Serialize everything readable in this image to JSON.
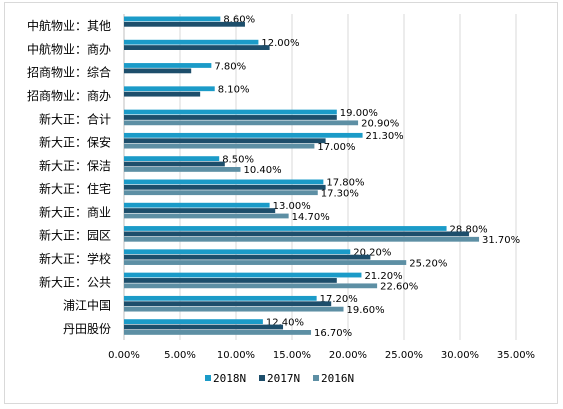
{
  "chart_data": {
    "type": "bar",
    "orientation": "horizontal",
    "categories": [
      "中航物业：其他",
      "中航物业：商办",
      "招商物业：综合",
      "招商物业：商办",
      "新大正：合计",
      "新大正：保安",
      "新大正：保洁",
      "新大正：住宅",
      "新大正：商业",
      "新大正：园区",
      "新大正：学校",
      "新大正：公共",
      "浦江中国",
      "丹田股份"
    ],
    "series": [
      {
        "name": "2018N",
        "color": "#1b9bc8",
        "values": [
          8.6,
          12.0,
          7.8,
          8.1,
          19.0,
          21.3,
          8.5,
          17.8,
          13.0,
          28.8,
          20.2,
          21.2,
          17.2,
          12.4
        ]
      },
      {
        "name": "2017N",
        "color": "#1d4e6b",
        "values": [
          10.8,
          13.0,
          6.0,
          6.8,
          19.0,
          18.0,
          9.0,
          18.0,
          13.5,
          30.8,
          22.0,
          19.0,
          18.5,
          14.2
        ]
      },
      {
        "name": "2016N",
        "color": "#5d8fa4",
        "values": [
          null,
          null,
          null,
          null,
          20.9,
          17.0,
          10.4,
          17.3,
          14.7,
          31.7,
          25.2,
          22.6,
          19.6,
          16.7
        ]
      }
    ],
    "data_labels": [
      [
        "8.60%",
        null,
        null
      ],
      [
        "12.00%",
        null,
        null
      ],
      [
        "7.80%",
        null,
        null
      ],
      [
        "8.10%",
        null,
        null
      ],
      [
        "19.00%",
        null,
        "20.90%"
      ],
      [
        "21.30%",
        null,
        "17.00%"
      ],
      [
        "8.50%",
        null,
        "10.40%"
      ],
      [
        "17.80%",
        null,
        "17.30%"
      ],
      [
        "13.00%",
        null,
        "14.70%"
      ],
      [
        "28.80%",
        null,
        "31.70%"
      ],
      [
        "20.20%",
        null,
        "25.20%"
      ],
      [
        "21.20%",
        null,
        "22.60%"
      ],
      [
        "17.20%",
        null,
        "19.60%"
      ],
      [
        "12.40%",
        null,
        "16.70%"
      ]
    ],
    "xticks": [
      "0.00%",
      "5.00%",
      "10.00%",
      "15.00%",
      "20.00%",
      "25.00%",
      "30.00%",
      "35.00%"
    ],
    "xlim": [
      0,
      35
    ],
    "grid": "vertical",
    "legend_position": "bottom"
  }
}
